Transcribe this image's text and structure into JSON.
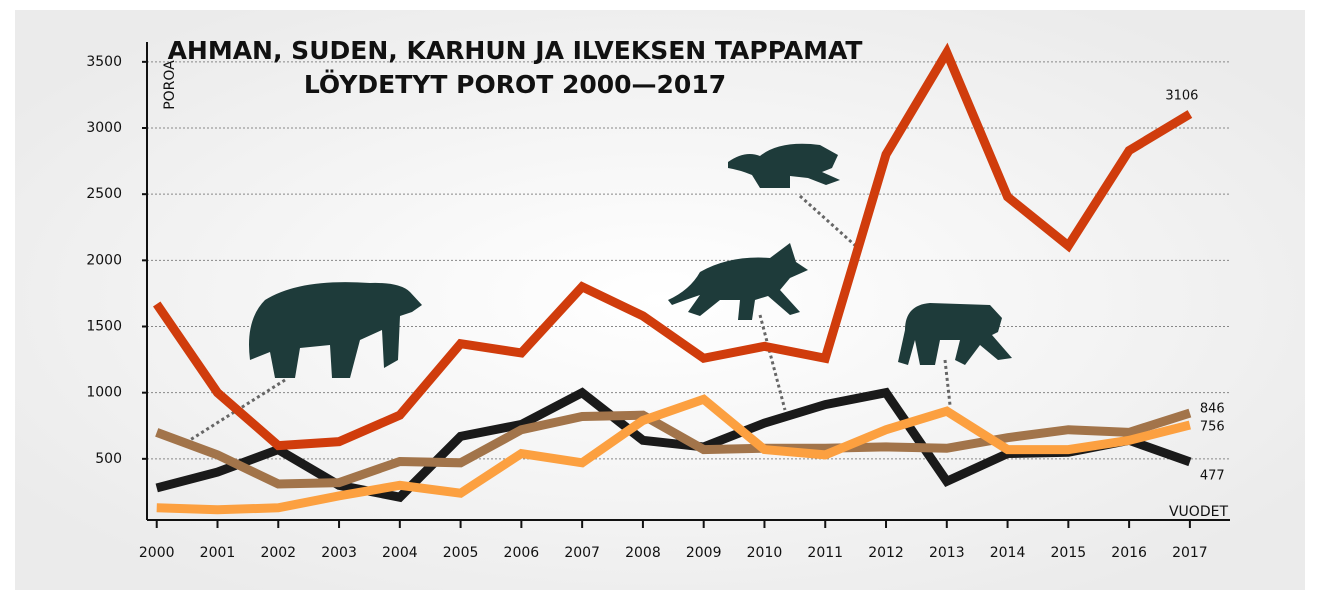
{
  "chart_data": {
    "type": "line",
    "title": [
      "AHMAN, SUDEN, KARHUN JA ILVEKSEN TAPPAMAT",
      "LÖYDETYT POROT 2000—2017"
    ],
    "y_label": "POROA",
    "x_label": "VUODET",
    "x": [
      2000,
      2001,
      2002,
      2003,
      2004,
      2005,
      2006,
      2007,
      2008,
      2009,
      2010,
      2011,
      2012,
      2013,
      2014,
      2015,
      2016,
      2017
    ],
    "xlim": [
      1999.84,
      2017.66
    ],
    "xticks": [
      2000,
      2001,
      2002,
      2003,
      2004,
      2005,
      2006,
      2007,
      2008,
      2009,
      2010,
      2011,
      2012,
      2013,
      2014,
      2015,
      2016,
      2017
    ],
    "ylim": [
      0,
      3650
    ],
    "yticks": [
      500,
      1000,
      1500,
      2000,
      2500,
      3000,
      3500
    ],
    "grid": true,
    "series": [
      {
        "color": "#1a1a1a",
        "values": [
          280,
          400,
          570,
          300,
          210,
          670,
          760,
          1000,
          640,
          590,
          770,
          910,
          1000,
          330,
          540,
          550,
          640,
          477
        ]
      },
      {
        "color": "#a2744a",
        "values": [
          700,
          530,
          310,
          320,
          480,
          470,
          720,
          820,
          830,
          570,
          580,
          580,
          590,
          580,
          660,
          720,
          700,
          846
        ]
      },
      {
        "color": "#fca040",
        "values": [
          130,
          115,
          130,
          220,
          300,
          240,
          540,
          470,
          790,
          950,
          570,
          530,
          720,
          860,
          570,
          570,
          640,
          756
        ]
      },
      {
        "color": "#d03c0c",
        "values": [
          1670,
          1000,
          600,
          630,
          830,
          1370,
          1300,
          1800,
          1580,
          1260,
          1350,
          1260,
          2800,
          3570,
          2480,
          2110,
          2830,
          3106
        ]
      }
    ]
  }
}
